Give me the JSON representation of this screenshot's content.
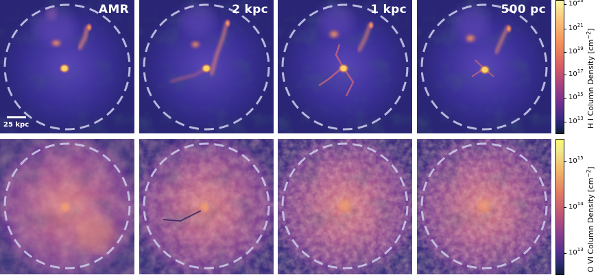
{
  "panels": {
    "top": [
      {
        "label": "AMR"
      },
      {
        "label": "2 kpc"
      },
      {
        "label": "1 kpc"
      },
      {
        "label": "500 pc"
      }
    ],
    "scale_bar": "25 kpc"
  },
  "colorbars": {
    "hi": {
      "label_prefix": "H I Column Density [cm",
      "label_sup": "−2",
      "label_suffix": "]",
      "ticks": [
        {
          "base": "10",
          "exp": "23"
        },
        {
          "base": "10",
          "exp": "21"
        },
        {
          "base": "10",
          "exp": "19"
        },
        {
          "base": "10",
          "exp": "17"
        },
        {
          "base": "10",
          "exp": "15"
        },
        {
          "base": "10",
          "exp": "13"
        }
      ]
    },
    "ovi": {
      "label_prefix": "O VI Column Density [cm",
      "label_sup": "−2",
      "label_suffix": "]",
      "ticks": [
        {
          "base": "10",
          "exp": "15"
        },
        {
          "base": "10",
          "exp": "14"
        },
        {
          "base": "10",
          "exp": "13"
        }
      ]
    }
  },
  "colors": {
    "hi_background": "#3a2f96",
    "ovi_background": "#7a3f95",
    "circle": "#c9c7e6"
  }
}
